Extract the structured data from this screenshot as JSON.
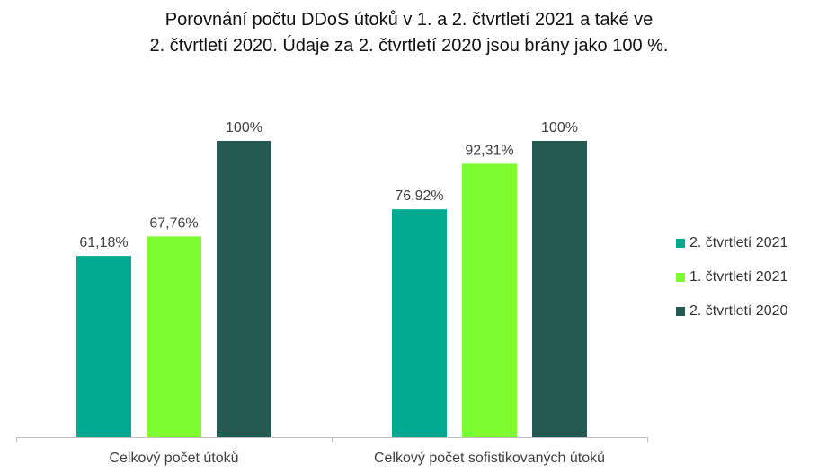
{
  "chart_data": {
    "type": "bar",
    "title": "Porovnání počtu DDoS útoků v 1. a 2. čtvrtletí 2021 a také ve\n2. čtvrtletí 2020. Údaje za 2. čtvrtletí 2020 jsou brány jako 100 %.",
    "categories": [
      "Celkový počet útoků",
      "Celkový počet sofistikovaných útoků"
    ],
    "series": [
      {
        "name": "2. čtvrtletí 2021",
        "values": [
          61.18,
          76.92
        ],
        "labels": [
          "61,18%",
          "76,92%"
        ],
        "color": "#00a98f"
      },
      {
        "name": "1. čtvrtletí 2021",
        "values": [
          67.76,
          92.31
        ],
        "labels": [
          "67,76%",
          "92,31%"
        ],
        "color": "#7efc32"
      },
      {
        "name": "2. čtvrtletí 2020",
        "values": [
          100,
          100
        ],
        "labels": [
          "100%",
          "100%"
        ],
        "color": "#255a52"
      }
    ],
    "ylim": [
      0,
      100
    ],
    "grid": false,
    "legend_position": "right"
  }
}
